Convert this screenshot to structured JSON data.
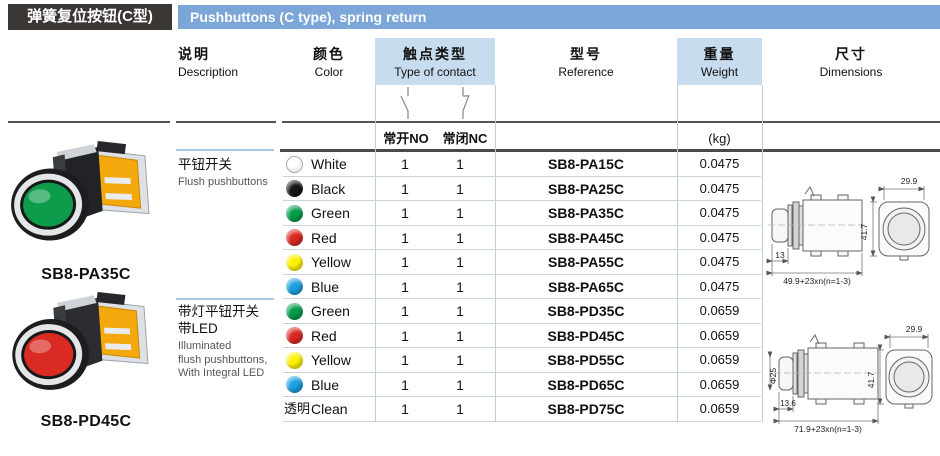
{
  "header": {
    "title_zh": "弹簧复位按钮(C型)",
    "title_en": "Pushbuttons (C type), spring return"
  },
  "colors": {
    "header_bar": "#7CA5D8",
    "header_cell": "#C8DCF0",
    "title_box": "#3B3735"
  },
  "columns": {
    "description": {
      "zh": "说明",
      "en": "Description"
    },
    "color": {
      "zh": "颜色",
      "en": "Color"
    },
    "contact": {
      "zh": "触点类型",
      "en": "Type of contact"
    },
    "reference": {
      "zh": "型号",
      "en": "Reference"
    },
    "weight": {
      "zh": "重量",
      "en": "Weight"
    },
    "dimensions": {
      "zh": "尺寸",
      "en": "Dimensions"
    }
  },
  "subheader": {
    "no_label": "常开NO",
    "nc_label": "常闭NC",
    "kg_label": "(kg)"
  },
  "products": [
    {
      "model": "SB8-PA35C",
      "button_color": "#0d9c4c"
    },
    {
      "model": "SB8-PD45C",
      "button_color": "#d92b24"
    }
  ],
  "groups": [
    {
      "desc_zh": "平钮开关",
      "desc_en": "Flush pushbuttons",
      "rows": [
        {
          "color_name": "White",
          "swatch": "#FFFFFF",
          "no": "1",
          "nc": "1",
          "ref": "SB8-PA15C",
          "weight": "0.0475"
        },
        {
          "color_name": "Black",
          "swatch": "#151515",
          "no": "1",
          "nc": "1",
          "ref": "SB8-PA25C",
          "weight": "0.0475"
        },
        {
          "color_name": "Green",
          "swatch": "#009C48",
          "no": "1",
          "nc": "1",
          "ref": "SB8-PA35C",
          "weight": "0.0475"
        },
        {
          "color_name": "Red",
          "swatch": "#DC2823",
          "no": "1",
          "nc": "1",
          "ref": "SB8-PA45C",
          "weight": "0.0475"
        },
        {
          "color_name": "Yellow",
          "swatch": "#FFF100",
          "no": "1",
          "nc": "1",
          "ref": "SB8-PA55C",
          "weight": "0.0475"
        },
        {
          "color_name": "Blue",
          "swatch": "#1C9FE0",
          "no": "1",
          "nc": "1",
          "ref": "SB8-PA65C",
          "weight": "0.0475"
        }
      ]
    },
    {
      "desc_zh": "带灯平钮开关\n带LED",
      "desc_en": "Illuminated\nflush pushbuttons,\nWith Integral LED",
      "rows": [
        {
          "color_name": "Green",
          "swatch": "#009C48",
          "no": "1",
          "nc": "1",
          "ref": "SB8-PD35C",
          "weight": "0.0659"
        },
        {
          "color_name": "Red",
          "swatch": "#DC2823",
          "no": "1",
          "nc": "1",
          "ref": "SB8-PD45C",
          "weight": "0.0659"
        },
        {
          "color_name": "Yellow",
          "swatch": "#FFF100",
          "no": "1",
          "nc": "1",
          "ref": "SB8-PD55C",
          "weight": "0.0659"
        },
        {
          "color_name": "Blue",
          "swatch": "#1C9FE0",
          "no": "1",
          "nc": "1",
          "ref": "SB8-PD65C",
          "weight": "0.0659"
        },
        {
          "color_name": "Clean",
          "color_zh": "透明",
          "no": "1",
          "nc": "1",
          "ref": "SB8-PD75C",
          "weight": "0.0659"
        }
      ]
    }
  ],
  "dim_drawings": [
    {
      "cap_depth": "13",
      "total_length": "49.9+23xn(n=1-3)",
      "front_width": "29.9",
      "front_height": "41.7"
    },
    {
      "diameter": "Φ25",
      "cap_depth": "13.6",
      "total_length": "71.9+23xn(n=1-3)",
      "front_width": "29.9",
      "front_height": "41.7"
    }
  ]
}
